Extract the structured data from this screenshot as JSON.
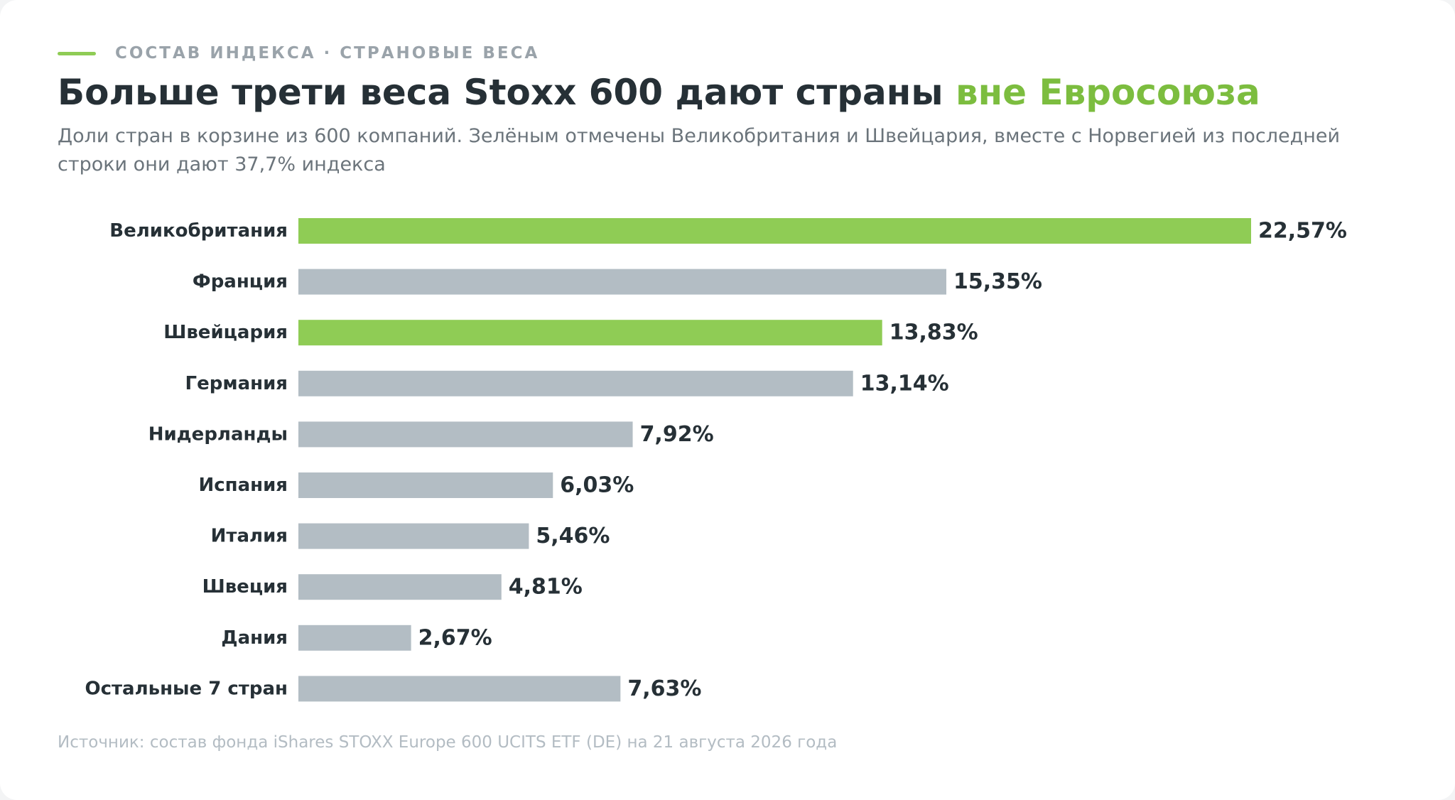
{
  "header": {
    "eyebrow": "СОСТАВ ИНДЕКСА · СТРАНОВЫЕ ВЕСА",
    "title_main": "Больше трети веса Stoxx 600 дают страны ",
    "title_accent": "вне Евросоюза",
    "subtitle": "Доли стран в корзине из 600 компаний. Зелёным отмечены Великобритания и Швейцария, вместе с Норвегией из последней строки они дают 37,7% индекса"
  },
  "footer": {
    "source": "Источник: состав фонда iShares STOXX Europe 600 UCITS ETF (DE) на 21 августа 2026 года"
  },
  "colors": {
    "accent": "#8fcc55",
    "accent_text": "#7cbd3f",
    "bar_default": "#b3bdc4",
    "text_dark": "#263036"
  },
  "chart_data": {
    "type": "bar",
    "orientation": "horizontal",
    "title": "Больше трети веса Stoxx 600 дают страны вне Евросоюза",
    "xlabel": "",
    "ylabel": "",
    "xlim": [
      0,
      22.57
    ],
    "grid": false,
    "legend": "none",
    "categories": [
      "Великобритания",
      "Франция",
      "Швейцария",
      "Германия",
      "Нидерланды",
      "Испания",
      "Италия",
      "Швеция",
      "Дания",
      "Остальные 7 стран"
    ],
    "values": [
      22.57,
      15.35,
      13.83,
      13.14,
      7.92,
      6.03,
      5.46,
      4.81,
      2.67,
      7.63
    ],
    "value_labels": [
      "22,57%",
      "15,35%",
      "13,83%",
      "13,14%",
      "7,92%",
      "6,03%",
      "5,46%",
      "4,81%",
      "2,67%",
      "7,63%"
    ],
    "highlighted": [
      "Великобритания",
      "Швейцария"
    ]
  }
}
